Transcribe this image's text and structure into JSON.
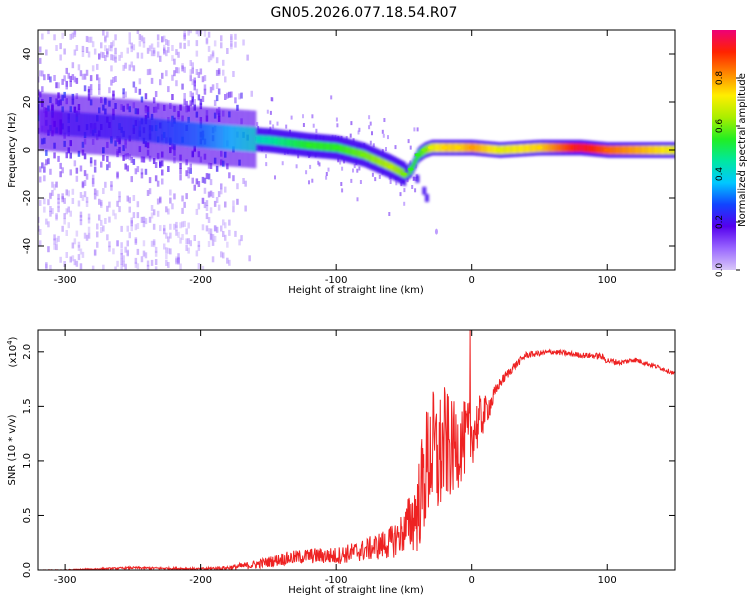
{
  "page_title": "GN05.2026.077.18.54.R07",
  "colors": {
    "snr_line": "#ee2222",
    "colorbar_stops": [
      "#d9c8f8",
      "#9966ff",
      "#5500ee",
      "#1144ff",
      "#00c8ff",
      "#00e8a0",
      "#22ee22",
      "#aaee00",
      "#ffee00",
      "#ff8800",
      "#ff2200",
      "#ee0077"
    ]
  },
  "chart_data": [
    {
      "type": "heatmap",
      "name": "spectrogram",
      "title": "GN05.2026.077.18.54.R07",
      "xlabel": "Height of straight line (km)",
      "ylabel": "Frequency (Hz)",
      "xlim": [
        -320,
        150
      ],
      "ylim": [
        -50,
        50
      ],
      "xticks": [
        -300,
        -200,
        -100,
        0,
        100
      ],
      "yticks": [
        -40,
        -20,
        0,
        20,
        40
      ],
      "ridge_x": [
        -320,
        -300,
        -250,
        -200,
        -150,
        -120,
        -100,
        -80,
        -60,
        -50,
        -45,
        -40,
        -35,
        -30,
        -20,
        -10,
        0,
        20,
        50,
        80,
        100,
        150
      ],
      "ridge_y": [
        12,
        11,
        9,
        6,
        4,
        2,
        1,
        -2,
        -7,
        -10,
        -8,
        -2,
        0,
        1,
        1,
        1,
        1,
        0,
        1,
        1,
        0,
        0
      ],
      "ridge_intensity": [
        0.15,
        0.2,
        0.22,
        0.3,
        0.45,
        0.55,
        0.55,
        0.6,
        0.65,
        0.6,
        0.55,
        0.55,
        0.6,
        0.7,
        0.75,
        0.75,
        0.8,
        0.7,
        0.75,
        0.95,
        0.85,
        0.7
      ],
      "branch_x": [
        -48,
        -40,
        -35,
        -33
      ],
      "branch_y": [
        -8,
        -12,
        -17,
        -20
      ],
      "colorbar": {
        "label": "Normalized spectral amplitude",
        "range": [
          0,
          1
        ],
        "ticks": [
          "0.0",
          "0.2",
          "0.4",
          "0.6",
          "0.8"
        ]
      }
    },
    {
      "type": "line",
      "name": "snr",
      "xlabel": "Height of straight line (km)",
      "ylabel": "SNR (10 * v/v)",
      "scale_label": "(x10",
      "scale_exp": "4",
      "scale_close": ")",
      "xlim": [
        -320,
        150
      ],
      "ylim": [
        0,
        2.2
      ],
      "xticks": [
        -300,
        -200,
        -100,
        0,
        100
      ],
      "yticks": [
        "0.0",
        "0.5",
        "1.0",
        "1.5",
        "2.0"
      ],
      "series": [
        {
          "name": "SNR",
          "x": [
            -320,
            -300,
            -250,
            -200,
            -180,
            -160,
            -140,
            -120,
            -100,
            -80,
            -60,
            -50,
            -40,
            -35,
            -30,
            -25,
            -20,
            -15,
            -10,
            -5,
            0,
            5,
            10,
            15,
            20,
            30,
            40,
            60,
            80,
            95,
            100,
            110,
            120,
            140,
            150
          ],
          "y": [
            0.0,
            0.0,
            0.02,
            0.01,
            0.02,
            0.05,
            0.1,
            0.13,
            0.13,
            0.18,
            0.25,
            0.35,
            0.55,
            0.85,
            1.1,
            1.0,
            1.15,
            1.1,
            1.15,
            1.2,
            1.25,
            1.35,
            1.45,
            1.55,
            1.7,
            1.85,
            1.97,
            2.0,
            1.97,
            1.96,
            1.92,
            1.9,
            1.93,
            1.85,
            1.8
          ],
          "noise": [
            0.0,
            0.005,
            0.01,
            0.01,
            0.02,
            0.04,
            0.06,
            0.07,
            0.08,
            0.1,
            0.15,
            0.2,
            0.4,
            0.55,
            0.6,
            0.6,
            0.55,
            0.45,
            0.4,
            0.35,
            0.3,
            0.25,
            0.15,
            0.1,
            0.05,
            0.04,
            0.03,
            0.025,
            0.025,
            0.03,
            0.03,
            0.025,
            0.025,
            0.02,
            0.02
          ],
          "peak_value": 2.2,
          "peak_x": -1
        }
      ]
    }
  ]
}
